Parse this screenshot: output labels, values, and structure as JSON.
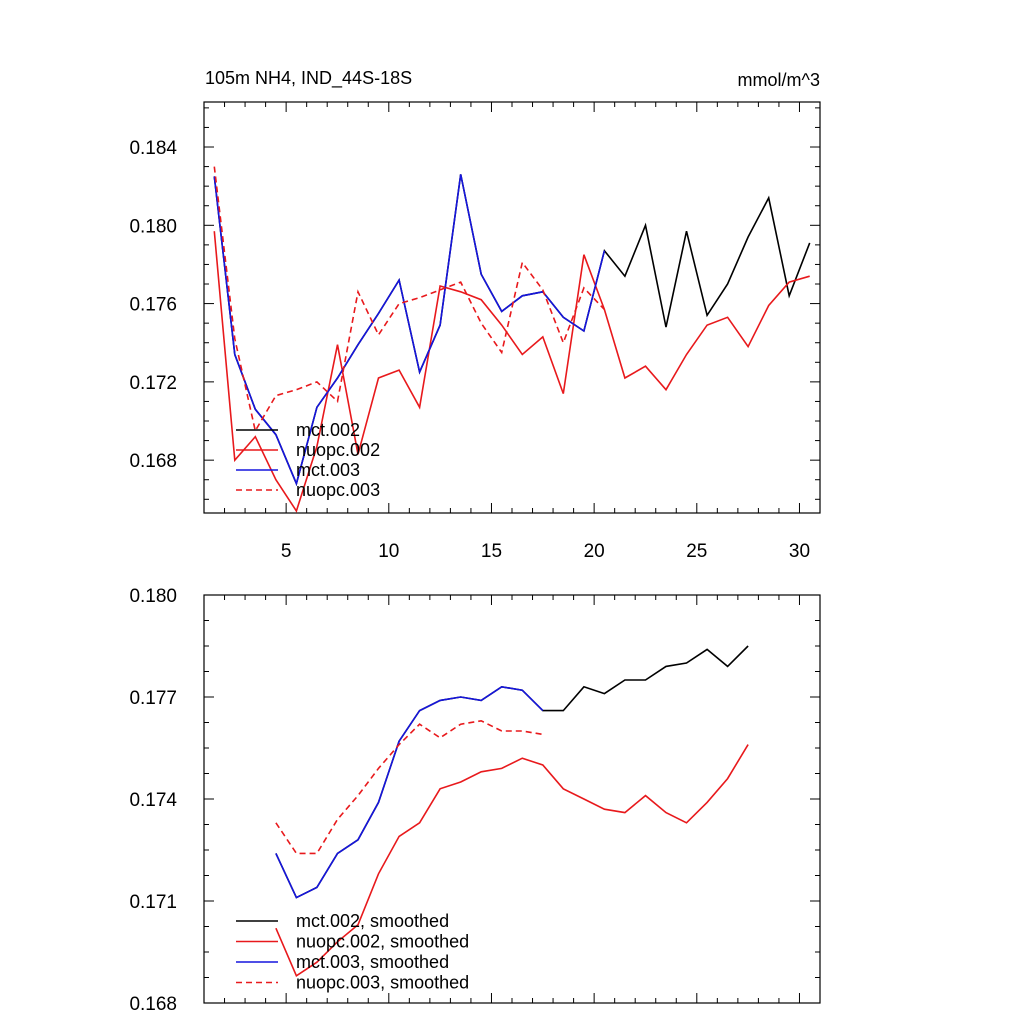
{
  "colors": {
    "black": "#000000",
    "red": "#e8191c",
    "blue": "#1515dd"
  },
  "chart_data": [
    {
      "type": "line",
      "title": "105m NH4, IND_44S-18S",
      "units": "mmol/m^3",
      "xlim": [
        1,
        31
      ],
      "ylim": [
        0.1653,
        0.1863
      ],
      "x_ticks": [
        5,
        10,
        15,
        20,
        25,
        30
      ],
      "y_ticks": [
        0.168,
        0.172,
        0.176,
        0.18,
        0.184
      ],
      "y_tick_labels": [
        "0.168",
        "0.172",
        "0.176",
        "0.180",
        "0.184"
      ],
      "x_tick_labels": [
        "5",
        "10",
        "15",
        "20",
        "25",
        "30"
      ],
      "legend": "bottom-left",
      "series": [
        {
          "name": "mct.002",
          "color": "black",
          "dash": false,
          "x": [
            1.5,
            2.5,
            3.5,
            4.5,
            5.5,
            6.5,
            7.5,
            8.5,
            9.5,
            10.5,
            11.5,
            12.5,
            13.5,
            14.5,
            15.5,
            16.5,
            17.5,
            18.5,
            19.5,
            20.5,
            21.5,
            22.5,
            23.5,
            24.5,
            25.5,
            26.5,
            27.5,
            28.5,
            29.5,
            30.5
          ],
          "values": [
            0.1825,
            0.1734,
            0.1706,
            0.1693,
            0.1668,
            0.1707,
            0.1722,
            0.1739,
            0.1755,
            0.1772,
            0.1725,
            0.1749,
            0.1826,
            0.1775,
            0.1756,
            0.1764,
            0.1766,
            0.1753,
            0.1746,
            0.1787,
            0.1774,
            0.18,
            0.1748,
            0.1797,
            0.1754,
            0.177,
            0.1794,
            0.1814,
            0.1764,
            0.1791
          ]
        },
        {
          "name": "nuopc.002",
          "color": "red",
          "dash": false,
          "x": [
            1.5,
            2.5,
            3.5,
            4.5,
            5.5,
            6.5,
            7.5,
            8.5,
            9.5,
            10.5,
            11.5,
            12.5,
            13.5,
            14.5,
            15.5,
            16.5,
            17.5,
            18.5,
            19.5,
            20.5,
            21.5,
            22.5,
            23.5,
            24.5,
            25.5,
            26.5,
            27.5,
            28.5,
            29.5,
            30.5
          ],
          "values": [
            0.1797,
            0.168,
            0.1692,
            0.167,
            0.1654,
            0.1687,
            0.1739,
            0.1683,
            0.1722,
            0.1726,
            0.1707,
            0.1769,
            0.1766,
            0.1762,
            0.1749,
            0.1734,
            0.1743,
            0.1714,
            0.1785,
            0.1757,
            0.1722,
            0.1728,
            0.1716,
            0.1734,
            0.1749,
            0.1753,
            0.1738,
            0.1759,
            0.1771,
            0.1774
          ]
        },
        {
          "name": "mct.003",
          "color": "blue",
          "dash": false,
          "x": [
            1.5,
            2.5,
            3.5,
            4.5,
            5.5,
            6.5,
            7.5,
            8.5,
            9.5,
            10.5,
            11.5,
            12.5,
            13.5,
            14.5,
            15.5,
            16.5,
            17.5,
            18.5,
            19.5,
            20.5
          ],
          "values": [
            0.1825,
            0.1734,
            0.1706,
            0.1693,
            0.1668,
            0.1707,
            0.1722,
            0.1739,
            0.1755,
            0.1772,
            0.1725,
            0.1749,
            0.1826,
            0.1775,
            0.1756,
            0.1764,
            0.1766,
            0.1753,
            0.1746,
            0.1787
          ]
        },
        {
          "name": "nuopc.003",
          "color": "red",
          "dash": true,
          "x": [
            1.5,
            2.5,
            3.5,
            4.5,
            5.5,
            6.5,
            7.5,
            8.5,
            9.5,
            10.5,
            11.5,
            12.5,
            13.5,
            14.5,
            15.5,
            16.5,
            17.5,
            18.5,
            19.5,
            20.5
          ],
          "values": [
            0.183,
            0.1742,
            0.1695,
            0.1713,
            0.1716,
            0.172,
            0.171,
            0.1766,
            0.1744,
            0.176,
            0.1763,
            0.1767,
            0.1771,
            0.175,
            0.1735,
            0.1781,
            0.1767,
            0.174,
            0.1768,
            0.1757
          ]
        }
      ]
    },
    {
      "type": "line",
      "title": "",
      "xlim": [
        1,
        31
      ],
      "ylim": [
        0.168,
        0.18
      ],
      "x_ticks": [
        5,
        10,
        15,
        20,
        25,
        30
      ],
      "y_ticks": [
        0.168,
        0.171,
        0.174,
        0.177,
        0.18
      ],
      "y_tick_labels": [
        "0.168",
        "0.171",
        "0.174",
        "0.177",
        "0.180"
      ],
      "legend": "bottom-left",
      "series": [
        {
          "name": "mct.002, smoothed",
          "color": "black",
          "dash": false,
          "x": [
            4.5,
            5.5,
            6.5,
            7.5,
            8.5,
            9.5,
            10.5,
            11.5,
            12.5,
            13.5,
            14.5,
            15.5,
            16.5,
            17.5,
            18.5,
            19.5,
            20.5,
            21.5,
            22.5,
            23.5,
            24.5,
            25.5,
            26.5,
            27.5
          ],
          "values": [
            0.1724,
            0.1711,
            0.1714,
            0.1724,
            0.1728,
            0.1739,
            0.1757,
            0.1766,
            0.1769,
            0.177,
            0.1769,
            0.1773,
            0.1772,
            0.1766,
            0.1766,
            0.1773,
            0.1771,
            0.1775,
            0.1775,
            0.1779,
            0.178,
            0.1784,
            0.1779,
            0.1785
          ]
        },
        {
          "name": "nuopc.002, smoothed",
          "color": "red",
          "dash": false,
          "x": [
            4.5,
            5.5,
            6.5,
            7.5,
            8.5,
            9.5,
            10.5,
            11.5,
            12.5,
            13.5,
            14.5,
            15.5,
            16.5,
            17.5,
            18.5,
            19.5,
            20.5,
            21.5,
            22.5,
            23.5,
            24.5,
            25.5,
            26.5,
            27.5
          ],
          "values": [
            0.1702,
            0.1688,
            0.1692,
            0.1698,
            0.1703,
            0.1718,
            0.1729,
            0.1733,
            0.1743,
            0.1745,
            0.1748,
            0.1749,
            0.1752,
            0.175,
            0.1743,
            0.174,
            0.1737,
            0.1736,
            0.1741,
            0.1736,
            0.1733,
            0.1739,
            0.1746,
            0.1756
          ]
        },
        {
          "name": "mct.003, smoothed",
          "color": "blue",
          "dash": false,
          "x": [
            4.5,
            5.5,
            6.5,
            7.5,
            8.5,
            9.5,
            10.5,
            11.5,
            12.5,
            13.5,
            14.5,
            15.5,
            16.5,
            17.5
          ],
          "values": [
            0.1724,
            0.1711,
            0.1714,
            0.1724,
            0.1728,
            0.1739,
            0.1757,
            0.1766,
            0.1769,
            0.177,
            0.1769,
            0.1773,
            0.1772,
            0.1766
          ]
        },
        {
          "name": "nuopc.003, smoothed",
          "color": "red",
          "dash": true,
          "x": [
            4.5,
            5.5,
            6.5,
            7.5,
            8.5,
            9.5,
            10.5,
            11.5,
            12.5,
            13.5,
            14.5,
            15.5,
            16.5,
            17.5
          ],
          "values": [
            0.1733,
            0.1724,
            0.1724,
            0.1734,
            0.1741,
            0.1749,
            0.1756,
            0.1762,
            0.1758,
            0.1762,
            0.1763,
            0.176,
            0.176,
            0.1759
          ]
        }
      ]
    }
  ]
}
